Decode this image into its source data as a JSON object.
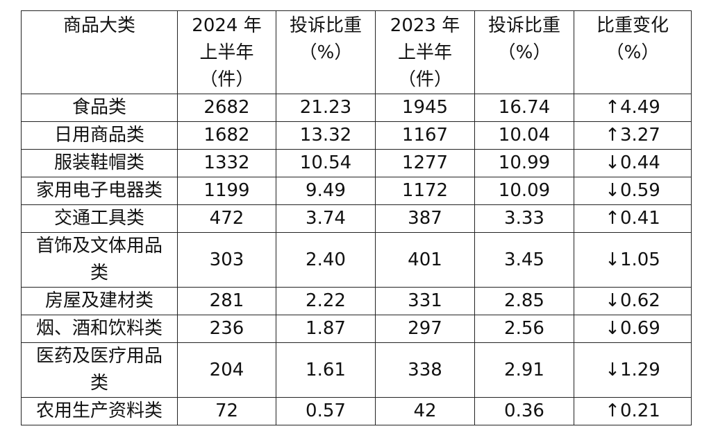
{
  "table": {
    "header": [
      "商品大类",
      "2024 年上半年（件）",
      "投诉比重（%）",
      "2023 年上半年（件）",
      "投诉比重（%）",
      "比重变化（%）"
    ],
    "rows": [
      [
        "食品类",
        "2682",
        "21.23",
        "1945",
        "16.74",
        "↑4.49"
      ],
      [
        "日用商品类",
        "1682",
        "13.32",
        "1167",
        "10.04",
        "↑3.27"
      ],
      [
        "服装鞋帽类",
        "1332",
        "10.54",
        "1277",
        "10.99",
        "↓0.44"
      ],
      [
        "家用电子电器类",
        "1199",
        "9.49",
        "1172",
        "10.09",
        "↓0.59"
      ],
      [
        "交通工具类",
        "472",
        "3.74",
        "387",
        "3.33",
        "↑0.41"
      ],
      [
        "首饰及文体用品类",
        "303",
        "2.40",
        "401",
        "3.45",
        "↓1.05"
      ],
      [
        "房屋及建材类",
        "281",
        "2.22",
        "331",
        "2.85",
        "↓0.62"
      ],
      [
        "烟、酒和饮料类",
        "236",
        "1.87",
        "297",
        "2.56",
        "↓0.69"
      ],
      [
        "医药及医疗用品类",
        "204",
        "1.61",
        "338",
        "2.91",
        "↓1.29"
      ],
      [
        "农用生产资料类",
        "72",
        "0.57",
        "42",
        "0.36",
        "↑0.21"
      ]
    ]
  }
}
